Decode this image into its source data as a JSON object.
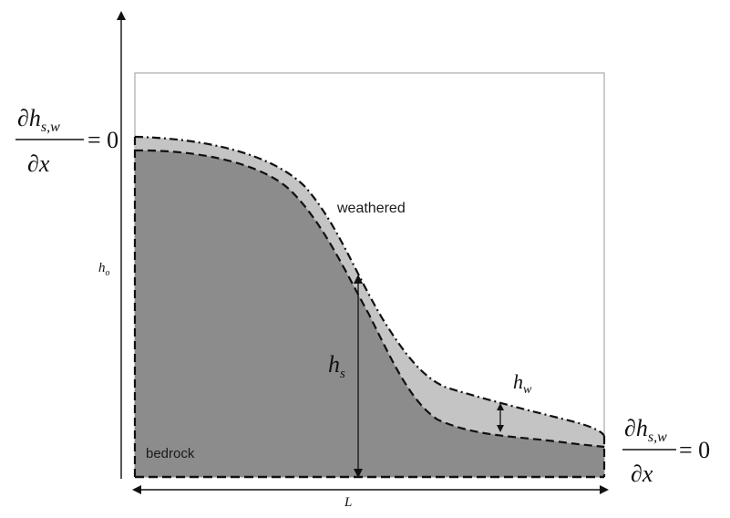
{
  "labels": {
    "weathered": "weathered",
    "bedrock": "bedrock",
    "h0_main": "h",
    "h0_sub": "o",
    "hs_main": "h",
    "hs_sub": "s",
    "hw_main": "h",
    "hw_sub": "w",
    "L": "L"
  },
  "boundary_condition": {
    "partial": "∂",
    "h": "h",
    "subscript": "s,w",
    "x": "x",
    "equals_zero": "= 0"
  },
  "colors": {
    "bedrock_fill": "#8c8c8c",
    "weathered_fill": "#c4c4c4",
    "frame_stroke": "#9a9a9a",
    "line_stroke": "#111111"
  }
}
